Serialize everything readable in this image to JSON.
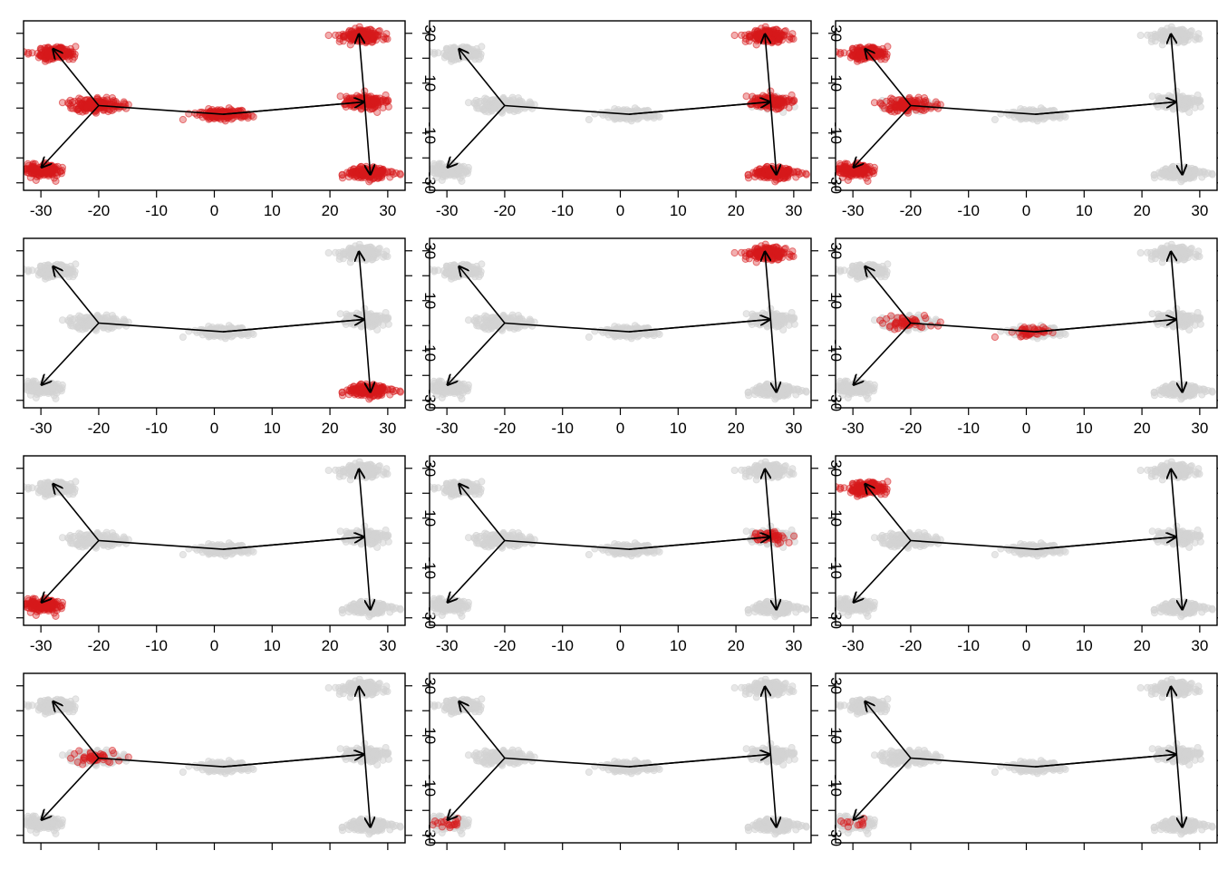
{
  "chart_data": {
    "type": "scatter",
    "layout": {
      "rows": 4,
      "cols": 3
    },
    "xlim": [
      -33,
      33
    ],
    "ylim": [
      -33,
      35
    ],
    "x_ticks": [
      -30,
      -20,
      -10,
      0,
      10,
      20,
      30
    ],
    "y_ticks": [
      -30,
      -20,
      -10,
      0,
      10,
      20,
      30
    ],
    "x_tick_labels": [
      "-30",
      "-20",
      "-10",
      "0",
      "10",
      "20",
      "30"
    ],
    "y_tick_labels": [
      "-30",
      "",
      "-10",
      "",
      "10",
      "",
      "30"
    ],
    "clusters": [
      {
        "id": "upper-left",
        "center": [
          -27.5,
          22
        ],
        "sd": [
          1.6,
          1.3
        ]
      },
      {
        "id": "lower-left",
        "center": [
          -29.5,
          -25
        ],
        "sd": [
          1.7,
          1.2
        ]
      },
      {
        "id": "left-branch",
        "center": [
          -20.5,
          1
        ],
        "sd": [
          2.2,
          1.3
        ]
      },
      {
        "id": "middle",
        "center": [
          1.5,
          -2.5
        ],
        "sd": [
          2.3,
          1.0
        ]
      },
      {
        "id": "right-branch",
        "center": [
          26,
          2.5
        ],
        "sd": [
          1.8,
          1.3
        ]
      },
      {
        "id": "upper-right",
        "center": [
          25.5,
          29
        ],
        "sd": [
          1.7,
          1.3
        ]
      },
      {
        "id": "lower-right",
        "center": [
          27,
          -26
        ],
        "sd": [
          1.8,
          1.2
        ]
      }
    ],
    "trajectory": {
      "nodes": {
        "left-hub": [
          -20,
          1
        ],
        "center": [
          1.5,
          -2.5
        ],
        "right-hub": [
          26,
          2.5
        ],
        "upper-left-tip": [
          -28,
          24
        ],
        "lower-left-tip": [
          -30,
          -24
        ],
        "upper-right-tip": [
          25,
          30
        ],
        "lower-right-tip": [
          27,
          -27
        ]
      },
      "path": [
        "left-hub",
        "center",
        "right-hub"
      ],
      "arrows": [
        [
          "center",
          "right-hub"
        ],
        [
          "left-hub",
          "upper-left-tip"
        ],
        [
          "left-hub",
          "lower-left-tip"
        ],
        [
          "right-hub",
          "upper-right-tip"
        ],
        [
          "right-hub",
          "lower-right-tip"
        ]
      ]
    },
    "colors": {
      "background_points": "#d3d3d3",
      "highlight": "#d7191c",
      "axis": "#000000"
    },
    "panels": [
      {
        "highlight": {
          "upper-left": 1,
          "lower-left": 1,
          "left-branch": 1,
          "middle": 1,
          "right-branch": 1,
          "upper-right": 1,
          "lower-right": 1
        }
      },
      {
        "highlight": {
          "right-branch": 0.8,
          "upper-right": 1,
          "lower-right": 1
        }
      },
      {
        "highlight": {
          "upper-left": 1,
          "lower-left": 1,
          "left-branch": 0.8
        }
      },
      {
        "highlight": {
          "lower-right": 1
        }
      },
      {
        "highlight": {
          "upper-right": 1
        }
      },
      {
        "highlight": {
          "left-branch": 0.35,
          "middle": 0.25
        }
      },
      {
        "highlight": {
          "lower-left": 1
        }
      },
      {
        "highlight": {
          "right-branch": 0.25
        }
      },
      {
        "highlight": {
          "upper-left": 1
        }
      },
      {
        "highlight": {
          "left-branch": 0.3
        }
      },
      {
        "highlight": {
          "lower-left": 0.15
        }
      },
      {
        "highlight": {
          "lower-left": 0.1
        }
      }
    ]
  }
}
